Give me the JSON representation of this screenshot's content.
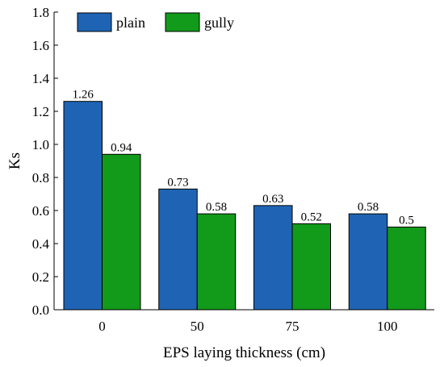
{
  "chart_data": {
    "type": "bar",
    "title": "",
    "xlabel": "EPS laying thickness (cm)",
    "ylabel": "Ks",
    "categories": [
      "0",
      "50",
      "75",
      "100"
    ],
    "series": [
      {
        "name": "plain",
        "color": "#1f64b4",
        "values": [
          1.26,
          0.73,
          0.63,
          0.58
        ],
        "labels": [
          "1.26",
          "0.73",
          "0.63",
          "0.58"
        ]
      },
      {
        "name": "gully",
        "color": "#129a1a",
        "values": [
          0.94,
          0.58,
          0.52,
          0.5
        ],
        "labels": [
          "0.94",
          "0.58",
          "0.52",
          "0.5"
        ]
      }
    ],
    "ylim": [
      0,
      1.8
    ],
    "yticks": [
      "0.0",
      "0.2",
      "0.4",
      "0.6",
      "0.8",
      "1.0",
      "1.2",
      "1.4",
      "1.6",
      "1.8"
    ],
    "legend_position": "top-left",
    "grid": false
  }
}
